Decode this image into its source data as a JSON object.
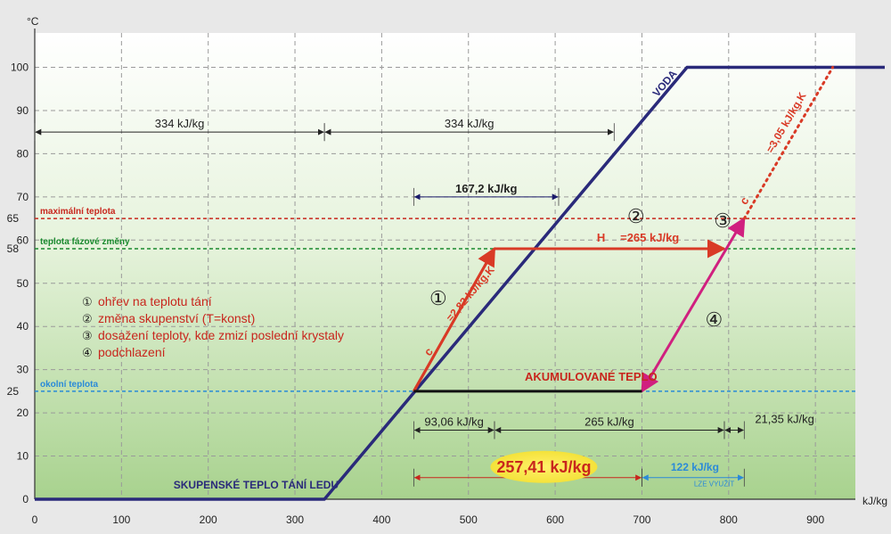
{
  "chart_data": {
    "type": "line",
    "xlabel": "kJ/kg",
    "ylabel": "°C",
    "xlim": [
      0,
      980
    ],
    "ylim": [
      0,
      100
    ],
    "x_ticks": [
      "0",
      "100",
      "200",
      "300",
      "400",
      "500",
      "600",
      "700",
      "800",
      "900"
    ],
    "y_ticks": [
      "0",
      "10",
      "20",
      "30",
      "40",
      "50",
      "60",
      "70",
      "80",
      "90",
      "100"
    ],
    "grid": true,
    "series": [
      {
        "name": "VODA",
        "color": "#2a2a7a",
        "points": [
          [
            0,
            0
          ],
          [
            334,
            0
          ],
          [
            752,
            100
          ],
          [
            980,
            100
          ]
        ]
      },
      {
        "name": "",
        "color": "#d93a26",
        "points": [
          [
            437,
            25
          ],
          [
            530,
            58
          ],
          [
            795,
            58
          ]
        ]
      },
      {
        "name": "",
        "color": "#d0207f",
        "points": [
          [
            818,
            65
          ],
          [
            700,
            25
          ]
        ]
      },
      {
        "name": "",
        "color": "#d93a26",
        "points": [
          [
            818,
            65
          ],
          [
            920,
            100
          ]
        ],
        "dotted": true
      },
      {
        "name": "",
        "color": "#111111",
        "points": [
          [
            437,
            25
          ],
          [
            700,
            25
          ]
        ]
      }
    ],
    "reference_lines": [
      {
        "y": 65,
        "label": "maximální teplota",
        "axis_label": "65",
        "color": "#c8261d"
      },
      {
        "y": 58,
        "label": "teplota  fázové změny",
        "axis_label": "58",
        "color": "#1a8a2e"
      },
      {
        "y": 25,
        "label": "okolní teplota",
        "axis_label": "25",
        "color": "#2a8ad8"
      }
    ],
    "dimensions": [
      {
        "from": 0,
        "to": 334,
        "y": 85,
        "label": "334 kJ/kg",
        "color": "#222"
      },
      {
        "from": 334,
        "to": 668,
        "y": 85,
        "label": "334 kJ/kg",
        "color": "#222"
      },
      {
        "from": 437,
        "to": 604,
        "y": 70,
        "label": "167,2 kJ/kg",
        "color": "#1a1a6a"
      },
      {
        "from": 437,
        "to": 530,
        "y": 16,
        "label": "93,06 kJ/kg",
        "color": "#222"
      },
      {
        "from": 530,
        "to": 795,
        "y": 16,
        "label": "265 kJ/kg",
        "color": "#222"
      },
      {
        "from": 795,
        "to": 818,
        "y": 16,
        "label": "21,35 kJ/kg",
        "color": "#222"
      },
      {
        "from": 437,
        "to": 700,
        "y": 5,
        "label": "257,41 kJ/kg",
        "color": "#c8261d"
      },
      {
        "from": 700,
        "to": 818,
        "y": 5,
        "label": "122 kJ/kg",
        "color": "#2a8ad8"
      }
    ],
    "annotations": [
      {
        "text": "VODA",
        "x": 718,
        "y": 93
      },
      {
        "text": "H",
        "x": 648,
        "y": 59.6
      },
      {
        "text": "=265 kJ/kg",
        "x": 675,
        "y": 59.6
      },
      {
        "text": "c",
        "x": 455,
        "y": 33
      },
      {
        "text": "=2,82 kJ/kg.K",
        "x": 480,
        "y": 41
      },
      {
        "text": "c",
        "x": 820,
        "y": 68
      },
      {
        "text": "=3,05 kJ/kg.K",
        "x": 850,
        "y": 80
      },
      {
        "text": "AKUMULOVANÉ TEPLO",
        "x": 565,
        "y": 27.5
      },
      {
        "text": "SKUPENSKÉ TEPLO TÁNÍ LEDU",
        "x": 160,
        "y": 2.5
      },
      {
        "text": "LZE VYUŽÍT",
        "x": 760,
        "y": 3
      },
      {
        "text": "①",
        "x": 455,
        "y": 45
      },
      {
        "text": "②",
        "x": 683,
        "y": 64
      },
      {
        "text": "③",
        "x": 783,
        "y": 63
      },
      {
        "text": "④",
        "x": 773,
        "y": 40
      }
    ]
  },
  "legend_items": [
    {
      "num": "①",
      "text": "ohřev na teplotu tání"
    },
    {
      "num": "②",
      "text": "změna skupenství (T=konst)"
    },
    {
      "num": "③",
      "text": "dosažení teploty, kde zmizí poslední krystaly"
    },
    {
      "num": "④",
      "text": "podchlazení"
    }
  ]
}
